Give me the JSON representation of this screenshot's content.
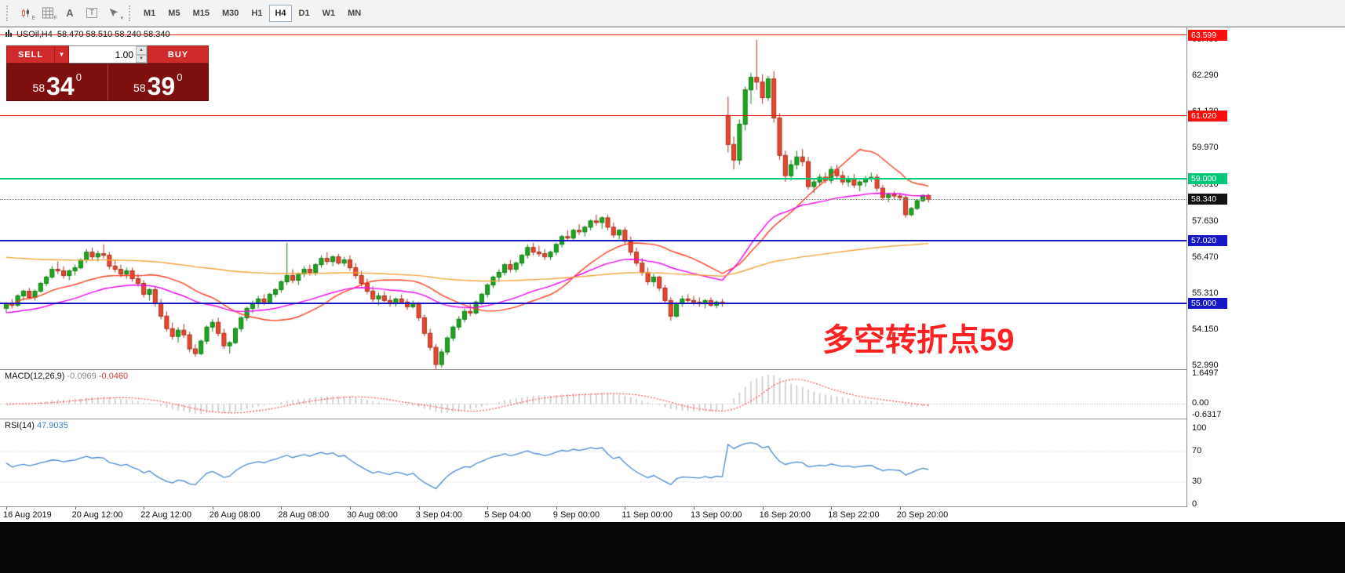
{
  "toolbar": {
    "icons": [
      {
        "name": "candlestick-style-icon",
        "badge": "E"
      },
      {
        "name": "grid-icon",
        "badge": "F"
      },
      {
        "name": "text-a-icon",
        "glyph": "A"
      },
      {
        "name": "text-box-icon",
        "glyph": "T"
      },
      {
        "name": "cursor-tool-icon",
        "badge": "▾"
      }
    ],
    "timeframes": [
      "M1",
      "M5",
      "M15",
      "M30",
      "H1",
      "H4",
      "D1",
      "W1",
      "MN"
    ],
    "active_timeframe": "H4"
  },
  "window": {
    "title": "USOil,H4",
    "ohlc": "58.470 58.510 58.240 58.340"
  },
  "trade_panel": {
    "sell_label": "SELL",
    "buy_label": "BUY",
    "volume": "1.00",
    "sell_price_small": "58",
    "sell_price_big": "34",
    "sell_price_sup": "0",
    "buy_price_small": "58",
    "buy_price_big": "39",
    "buy_price_sup": "0"
  },
  "annotation": {
    "text": "多空转折点59",
    "color": "#ff2121"
  },
  "indicators": {
    "macd_label": "MACD(12,26,9)",
    "macd_value_main": "-0.0969",
    "macd_value_signal": "-0.0460",
    "macd_scale": [
      {
        "text": "1.6497",
        "value": 1.6497
      },
      {
        "text": "0.00",
        "value": 0
      },
      {
        "text": "-0.6317",
        "value": -0.6317
      }
    ],
    "rsi_label": "RSI(14)",
    "rsi_value": "47.9035",
    "rsi_scale": [
      {
        "text": "100",
        "value": 100
      },
      {
        "text": "70",
        "value": 70
      },
      {
        "text": "30",
        "value": 30
      },
      {
        "text": "0",
        "value": 0
      }
    ]
  },
  "price_scale": {
    "labels": [
      {
        "text": "63.450",
        "price": 63.45
      },
      {
        "text": "62.290",
        "price": 62.29
      },
      {
        "text": "61.130",
        "price": 61.13
      },
      {
        "text": "59.970",
        "price": 59.97
      },
      {
        "text": "58.810",
        "price": 58.81
      },
      {
        "text": "57.630",
        "price": 57.63
      },
      {
        "text": "56.470",
        "price": 56.47
      },
      {
        "text": "55.310",
        "price": 55.31
      },
      {
        "text": "54.150",
        "price": 54.15
      },
      {
        "text": "52.990",
        "price": 52.99
      }
    ],
    "markers": [
      {
        "text": "63.599",
        "price": 63.599,
        "bg": "#f50f0f"
      },
      {
        "text": "61.020",
        "price": 61.02,
        "bg": "#f50f0f"
      },
      {
        "text": "59.000",
        "price": 59.0,
        "bg": "#00c878"
      },
      {
        "text": "58.340",
        "price": 58.34,
        "bg": "#111111"
      },
      {
        "text": "57.020",
        "price": 57.02,
        "bg": "#1616c4"
      },
      {
        "text": "55.000",
        "price": 55.0,
        "bg": "#1616c4"
      }
    ]
  },
  "chart_data": {
    "type": "candlestick",
    "symbol": "USOil",
    "timeframe": "H4",
    "y_range": [
      52.9,
      63.85
    ],
    "current_price": 58.34,
    "candle_colors": {
      "up": "#1ea321",
      "down": "#e8462e"
    },
    "x_tick_labels": [
      "16 Aug 2019",
      "20 Aug 12:00",
      "22 Aug 12:00",
      "26 Aug 08:00",
      "28 Aug 08:00",
      "30 Aug 08:00",
      "3 Sep 04:00",
      "5 Sep 04:00",
      "9 Sep 00:00",
      "11 Sep 00:00",
      "13 Sep 00:00",
      "16 Sep 20:00",
      "18 Sep 22:00",
      "20 Sep 20:00"
    ],
    "hlines": [
      {
        "label": "63.599",
        "price": 63.599,
        "color": "#f01414",
        "width": 1
      },
      {
        "label": "61.020",
        "price": 61.02,
        "color": "#f01414",
        "width": 1
      },
      {
        "label": "59.000",
        "price": 59.0,
        "color": "#00cc7a",
        "width": 2
      },
      {
        "label": "57.020",
        "price": 57.02,
        "color": "#1818c0",
        "width": 2
      },
      {
        "label": "55.000",
        "price": 55.0,
        "color": "#1818c0",
        "width": 2
      }
    ],
    "ma_lines": [
      {
        "label": "ma-fast-red",
        "type": "sma",
        "period": 24,
        "color": "#ff3c1e"
      },
      {
        "label": "ma-mid-magenta",
        "type": "ema",
        "period": 40,
        "seed": 54.7,
        "color": "#f000f0"
      },
      {
        "label": "ma-slow-orange",
        "type": "ema",
        "period": 200,
        "seed": 56.5,
        "color": "#f4a43c"
      }
    ],
    "macd": {
      "fast": 12,
      "slow": 26,
      "signal": 9,
      "current_main": -0.0969,
      "current_signal": -0.046,
      "scale_max": 1.6497,
      "scale_min": -0.6317,
      "histogram_color": "#c6c6c6",
      "signal_color": "#ff4040"
    },
    "rsi": {
      "period": 14,
      "current": 47.9035,
      "levels": [
        70,
        30
      ],
      "color": "#4788d0"
    },
    "ohlc": [
      [
        54.85,
        55.05,
        54.7,
        55.0
      ],
      [
        55.0,
        55.15,
        54.85,
        54.95
      ],
      [
        54.95,
        55.3,
        54.9,
        55.25
      ],
      [
        55.25,
        55.45,
        55.1,
        55.4
      ],
      [
        55.4,
        55.5,
        55.15,
        55.2
      ],
      [
        55.2,
        55.45,
        55.1,
        55.4
      ],
      [
        55.4,
        55.7,
        55.35,
        55.65
      ],
      [
        55.65,
        55.9,
        55.55,
        55.85
      ],
      [
        55.85,
        56.2,
        55.8,
        56.1
      ],
      [
        56.1,
        56.35,
        55.95,
        56.05
      ],
      [
        56.05,
        56.2,
        55.8,
        55.9
      ],
      [
        55.9,
        56.1,
        55.75,
        56.05
      ],
      [
        56.05,
        56.25,
        55.9,
        56.15
      ],
      [
        56.15,
        56.45,
        56.1,
        56.4
      ],
      [
        56.4,
        56.75,
        56.3,
        56.65
      ],
      [
        56.65,
        56.8,
        56.4,
        56.5
      ],
      [
        56.5,
        56.7,
        56.35,
        56.6
      ],
      [
        56.6,
        56.9,
        56.45,
        56.55
      ],
      [
        56.55,
        56.65,
        56.1,
        56.2
      ],
      [
        56.2,
        56.4,
        56.0,
        56.1
      ],
      [
        56.1,
        56.25,
        55.85,
        55.95
      ],
      [
        55.95,
        56.15,
        55.8,
        56.05
      ],
      [
        56.05,
        56.15,
        55.7,
        55.8
      ],
      [
        55.8,
        55.95,
        55.55,
        55.65
      ],
      [
        55.65,
        55.75,
        55.2,
        55.3
      ],
      [
        55.3,
        55.5,
        55.1,
        55.45
      ],
      [
        55.45,
        55.55,
        54.9,
        55.0
      ],
      [
        55.0,
        55.15,
        54.5,
        54.6
      ],
      [
        54.6,
        54.75,
        54.1,
        54.2
      ],
      [
        54.2,
        54.4,
        53.85,
        53.95
      ],
      [
        53.95,
        54.25,
        53.75,
        54.15
      ],
      [
        54.15,
        54.35,
        53.9,
        54.0
      ],
      [
        54.0,
        54.1,
        53.45,
        53.55
      ],
      [
        53.55,
        53.7,
        53.3,
        53.4
      ],
      [
        53.4,
        53.85,
        53.35,
        53.8
      ],
      [
        53.8,
        54.3,
        53.7,
        54.25
      ],
      [
        54.25,
        54.5,
        54.1,
        54.4
      ],
      [
        54.4,
        54.55,
        53.95,
        54.05
      ],
      [
        54.05,
        54.2,
        53.55,
        53.65
      ],
      [
        53.65,
        53.8,
        53.4,
        53.75
      ],
      [
        53.75,
        54.25,
        53.7,
        54.2
      ],
      [
        54.2,
        54.6,
        54.1,
        54.55
      ],
      [
        54.55,
        54.9,
        54.45,
        54.85
      ],
      [
        54.85,
        55.1,
        54.7,
        55.0
      ],
      [
        55.0,
        55.25,
        54.85,
        55.15
      ],
      [
        55.15,
        55.3,
        54.95,
        55.05
      ],
      [
        55.05,
        55.35,
        55.0,
        55.3
      ],
      [
        55.3,
        55.5,
        55.2,
        55.45
      ],
      [
        55.45,
        55.75,
        55.35,
        55.7
      ],
      [
        55.7,
        56.95,
        55.6,
        55.9
      ],
      [
        55.9,
        56.1,
        55.65,
        55.75
      ],
      [
        55.75,
        56.0,
        55.6,
        55.95
      ],
      [
        55.95,
        56.2,
        55.85,
        56.1
      ],
      [
        56.1,
        56.25,
        55.9,
        56.0
      ],
      [
        56.0,
        56.3,
        55.9,
        56.25
      ],
      [
        56.25,
        56.55,
        56.15,
        56.45
      ],
      [
        56.45,
        56.65,
        56.25,
        56.35
      ],
      [
        56.35,
        56.55,
        56.2,
        56.5
      ],
      [
        56.5,
        56.6,
        56.25,
        56.3
      ],
      [
        56.3,
        56.5,
        56.2,
        56.4
      ],
      [
        56.4,
        56.55,
        56.05,
        56.15
      ],
      [
        56.15,
        56.3,
        55.8,
        55.9
      ],
      [
        55.9,
        56.05,
        55.55,
        55.65
      ],
      [
        55.65,
        55.8,
        55.3,
        55.4
      ],
      [
        55.4,
        55.55,
        55.05,
        55.15
      ],
      [
        55.15,
        55.35,
        54.95,
        55.25
      ],
      [
        55.25,
        55.4,
        55.05,
        55.1
      ],
      [
        55.1,
        55.25,
        54.9,
        55.0
      ],
      [
        55.0,
        55.2,
        54.9,
        55.15
      ],
      [
        55.15,
        55.3,
        55.0,
        55.05
      ],
      [
        55.05,
        55.15,
        54.8,
        54.9
      ],
      [
        54.9,
        55.1,
        54.85,
        55.0
      ],
      [
        55.0,
        55.05,
        54.45,
        54.55
      ],
      [
        54.55,
        54.65,
        53.95,
        54.05
      ],
      [
        54.05,
        54.2,
        53.5,
        53.6
      ],
      [
        53.6,
        53.7,
        52.85,
        53.05
      ],
      [
        53.05,
        53.55,
        52.95,
        53.45
      ],
      [
        53.45,
        53.95,
        53.35,
        53.9
      ],
      [
        53.9,
        54.3,
        53.8,
        54.25
      ],
      [
        54.25,
        54.6,
        54.15,
        54.5
      ],
      [
        54.5,
        54.85,
        54.4,
        54.75
      ],
      [
        54.75,
        55.0,
        54.6,
        54.7
      ],
      [
        54.7,
        55.1,
        54.65,
        55.05
      ],
      [
        55.05,
        55.35,
        54.95,
        55.3
      ],
      [
        55.3,
        55.65,
        55.2,
        55.6
      ],
      [
        55.6,
        55.9,
        55.5,
        55.85
      ],
      [
        55.85,
        56.1,
        55.7,
        56.0
      ],
      [
        56.0,
        56.3,
        55.9,
        56.25
      ],
      [
        56.25,
        56.4,
        56.0,
        56.1
      ],
      [
        56.1,
        56.35,
        56.0,
        56.3
      ],
      [
        56.3,
        56.6,
        56.2,
        56.55
      ],
      [
        56.55,
        56.9,
        56.45,
        56.8
      ],
      [
        56.8,
        56.95,
        56.55,
        56.65
      ],
      [
        56.65,
        56.85,
        56.5,
        56.6
      ],
      [
        56.6,
        56.75,
        56.4,
        56.5
      ],
      [
        56.5,
        56.7,
        56.4,
        56.65
      ],
      [
        56.65,
        56.95,
        56.55,
        56.9
      ],
      [
        56.9,
        57.2,
        56.8,
        57.15
      ],
      [
        57.15,
        57.35,
        57.0,
        57.1
      ],
      [
        57.1,
        57.4,
        57.05,
        57.35
      ],
      [
        57.35,
        57.55,
        57.2,
        57.3
      ],
      [
        57.3,
        57.5,
        57.15,
        57.45
      ],
      [
        57.45,
        57.7,
        57.35,
        57.65
      ],
      [
        57.65,
        57.85,
        57.5,
        57.6
      ],
      [
        57.6,
        57.8,
        57.4,
        57.75
      ],
      [
        57.75,
        57.85,
        57.35,
        57.45
      ],
      [
        57.45,
        57.6,
        57.1,
        57.2
      ],
      [
        57.2,
        57.4,
        57.05,
        57.35
      ],
      [
        57.35,
        57.45,
        56.9,
        57.0
      ],
      [
        57.0,
        57.15,
        56.55,
        56.65
      ],
      [
        56.65,
        56.8,
        56.2,
        56.3
      ],
      [
        56.3,
        56.45,
        55.9,
        56.0
      ],
      [
        56.0,
        56.15,
        55.6,
        55.7
      ],
      [
        55.7,
        55.95,
        55.55,
        55.85
      ],
      [
        55.85,
        55.9,
        55.4,
        55.5
      ],
      [
        55.5,
        55.6,
        55.0,
        55.1
      ],
      [
        55.1,
        55.2,
        54.45,
        54.6
      ],
      [
        54.6,
        55.05,
        54.55,
        55.0
      ],
      [
        55.0,
        55.25,
        54.9,
        55.15
      ],
      [
        55.15,
        55.3,
        55.0,
        55.1
      ],
      [
        55.1,
        55.25,
        54.95,
        55.05
      ],
      [
        55.05,
        55.2,
        54.9,
        55.0
      ],
      [
        55.0,
        55.15,
        54.85,
        55.1
      ],
      [
        55.1,
        55.2,
        54.9,
        54.95
      ],
      [
        54.95,
        55.1,
        54.85,
        55.05
      ],
      [
        55.05,
        55.15,
        54.9,
        55.0
      ],
      [
        61.03,
        61.63,
        59.85,
        60.1
      ],
      [
        60.1,
        60.35,
        59.3,
        59.6
      ],
      [
        59.6,
        60.9,
        59.45,
        60.75
      ],
      [
        60.75,
        61.95,
        60.55,
        61.85
      ],
      [
        61.85,
        62.4,
        61.4,
        62.25
      ],
      [
        62.25,
        63.45,
        61.85,
        62.1
      ],
      [
        62.1,
        62.35,
        61.4,
        61.6
      ],
      [
        61.6,
        62.3,
        61.5,
        62.2
      ],
      [
        62.2,
        62.45,
        60.8,
        60.95
      ],
      [
        60.95,
        61.1,
        59.6,
        59.75
      ],
      [
        59.75,
        59.9,
        58.9,
        59.1
      ],
      [
        59.1,
        59.6,
        58.95,
        59.45
      ],
      [
        59.45,
        59.9,
        59.3,
        59.7
      ],
      [
        59.7,
        59.95,
        59.4,
        59.55
      ],
      [
        59.55,
        59.7,
        58.65,
        58.75
      ],
      [
        58.75,
        59.0,
        58.55,
        58.9
      ],
      [
        58.9,
        59.15,
        58.8,
        59.05
      ],
      [
        59.05,
        59.2,
        58.85,
        58.95
      ],
      [
        58.95,
        59.4,
        58.85,
        59.3
      ],
      [
        59.3,
        59.45,
        59.0,
        59.1
      ],
      [
        59.1,
        59.25,
        58.8,
        58.9
      ],
      [
        58.9,
        59.1,
        58.75,
        59.0
      ],
      [
        59.0,
        59.15,
        58.7,
        58.8
      ],
      [
        58.8,
        58.95,
        58.6,
        58.9
      ],
      [
        58.9,
        59.1,
        58.75,
        59.0
      ],
      [
        59.0,
        59.2,
        58.9,
        59.05
      ],
      [
        59.05,
        59.15,
        58.6,
        58.7
      ],
      [
        58.7,
        58.8,
        58.3,
        58.4
      ],
      [
        58.4,
        58.55,
        58.25,
        58.5
      ],
      [
        58.5,
        58.6,
        58.35,
        58.45
      ],
      [
        58.45,
        58.55,
        58.3,
        58.4
      ],
      [
        58.4,
        58.5,
        57.75,
        57.85
      ],
      [
        57.85,
        58.1,
        57.8,
        58.05
      ],
      [
        58.05,
        58.35,
        58.0,
        58.3
      ],
      [
        58.3,
        58.5,
        58.25,
        58.47
      ],
      [
        58.47,
        58.51,
        58.24,
        58.34
      ]
    ]
  }
}
